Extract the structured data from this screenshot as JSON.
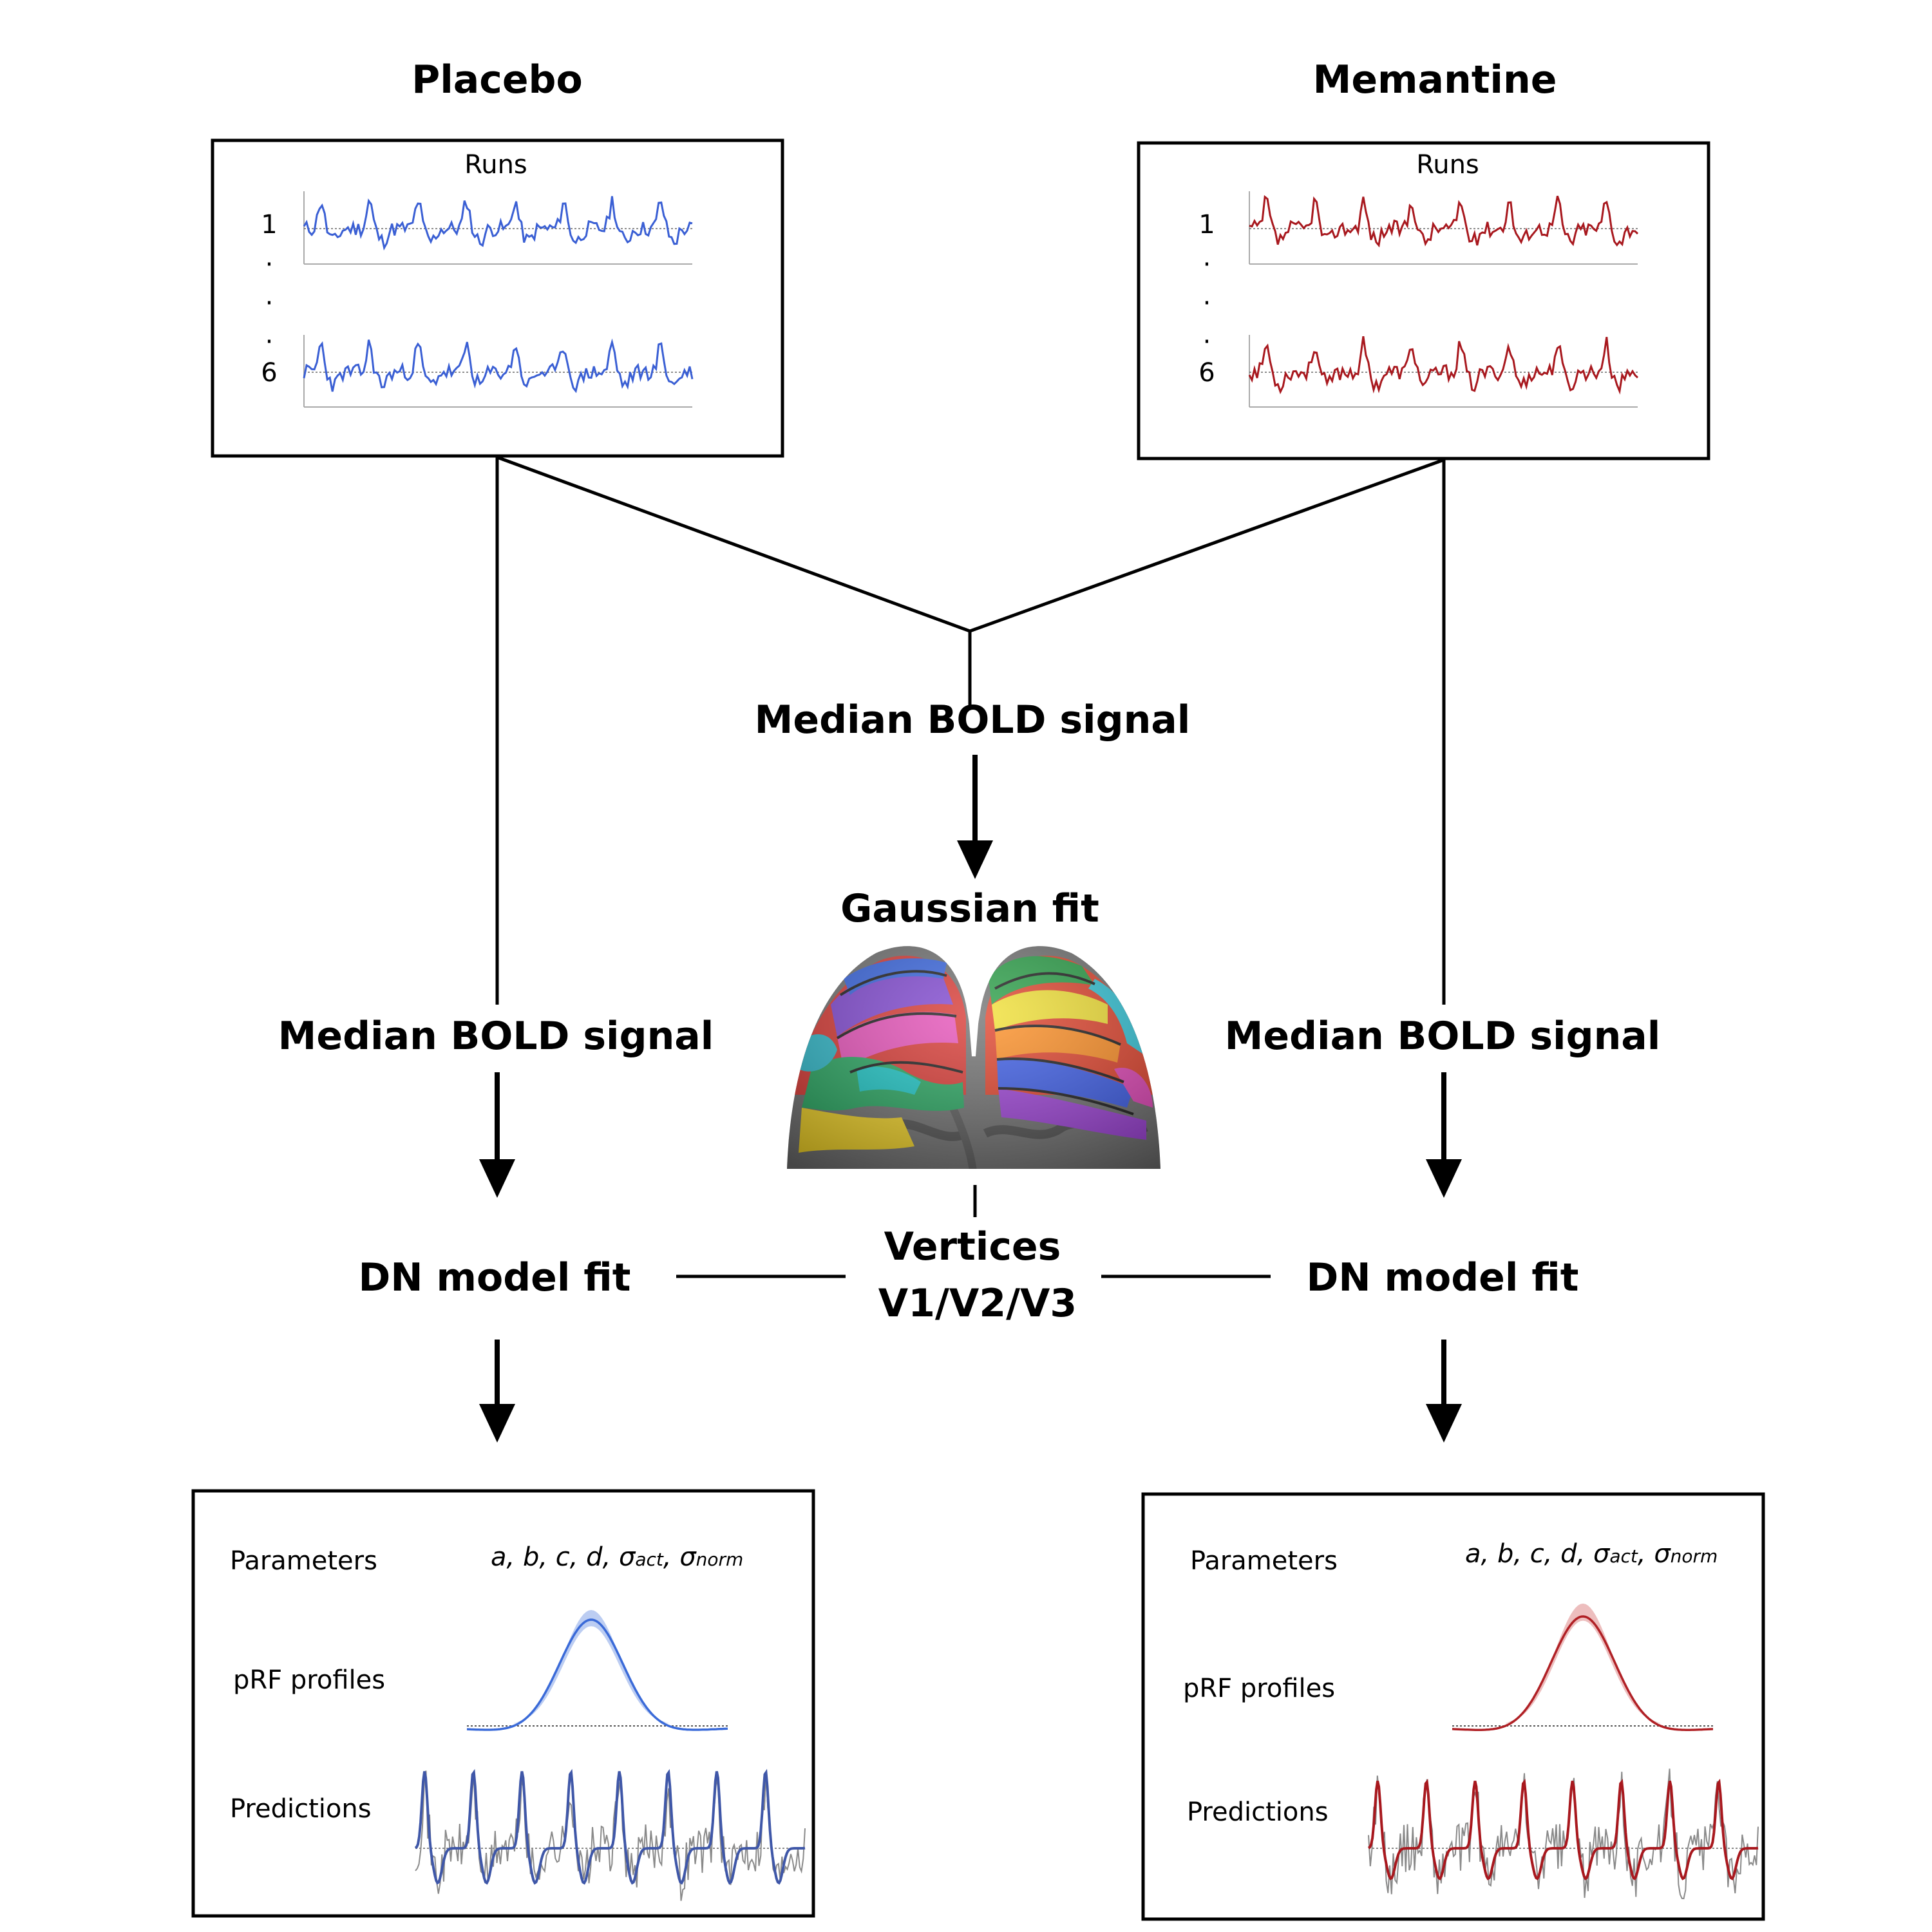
{
  "columns": {
    "placebo": {
      "title": "Placebo",
      "color": "#3a5fd4",
      "runs_header": "Runs",
      "run_labels": [
        "1",
        "·",
        "·",
        "·",
        "6"
      ],
      "median_label": "Median BOLD signal",
      "dn_fit_label": "DN model fit",
      "results": {
        "parameters_label": "Parameters",
        "profiles_label": "pRF profiles",
        "predictions_label": "Predictions",
        "params_text": "a, b, c, d, σ",
        "sub_act": "act",
        "sub_norm": "norm"
      }
    },
    "memantine": {
      "title": "Memantine",
      "color": "#a8181e",
      "runs_header": "Runs",
      "run_labels": [
        "1",
        "·",
        "·",
        "·",
        "6"
      ],
      "median_label": "Median BOLD signal",
      "dn_fit_label": "DN model fit",
      "results": {
        "parameters_label": "Parameters",
        "profiles_label": "pRF profiles",
        "predictions_label": "Predictions",
        "params_text": "a, b, c, d, σ",
        "sub_act": "act",
        "sub_norm": "norm"
      }
    }
  },
  "center": {
    "median_label": "Median BOLD signal",
    "gaussian_label": "Gaussian fit",
    "vertices_line1": "Vertices",
    "vertices_line2": "V1/V2/V3"
  },
  "icons": [
    "brain-surface-map-image",
    "arrow-down-icon"
  ]
}
